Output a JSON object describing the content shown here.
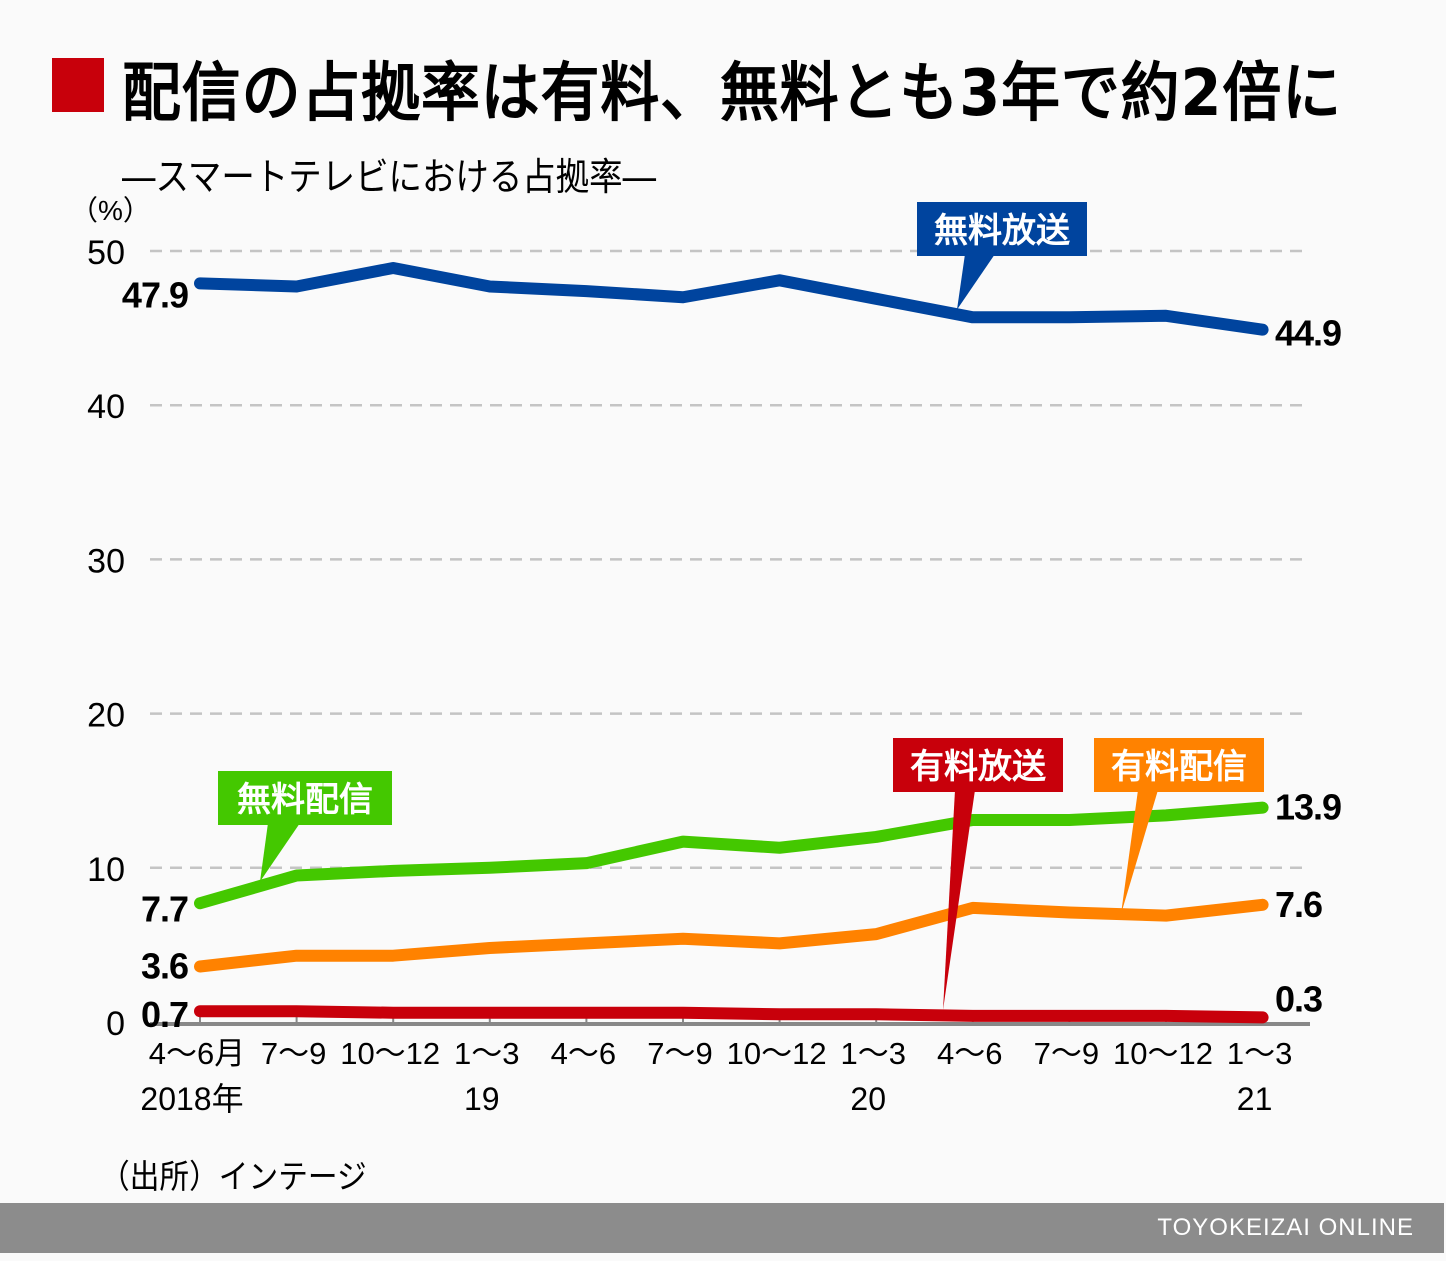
{
  "header": {
    "title": "配信の占拠率は有料、無料とも3年で約2倍に",
    "subtitle": "―スマートテレビにおける占拠率―"
  },
  "source": "（出所）インテージ",
  "footer": {
    "brand": "TOYOKEIZAI ONLINE"
  },
  "colors": {
    "title_mark": "#c8000b",
    "free_broadcast": "#00449e",
    "free_streaming": "#44c800",
    "paid_streaming": "#ff8200",
    "paid_broadcast": "#c8000b",
    "grid": "#c4c4c4",
    "footer": "#8c8c8c"
  },
  "chart_data": {
    "type": "line",
    "title": "配信の占拠率は有料、無料とも3年で約2倍に",
    "subtitle": "スマートテレビにおける占拠率",
    "xlabel": "",
    "ylabel": "（%）",
    "ylim": [
      0,
      50
    ],
    "yticks": [
      0,
      10,
      20,
      30,
      40,
      50
    ],
    "grid": true,
    "categories": [
      "4～6月",
      "7～9",
      "10～12",
      "1～3",
      "4～6",
      "7～9",
      "10～12",
      "1～3",
      "4～6",
      "7～9",
      "10～12",
      "1～3"
    ],
    "year_labels": [
      {
        "index": 0,
        "label": "2018年"
      },
      {
        "index": 3,
        "label": "19"
      },
      {
        "index": 7,
        "label": "20"
      },
      {
        "index": 11,
        "label": "21"
      }
    ],
    "series": [
      {
        "key": "free_broadcast",
        "name": "無料放送",
        "color": "#00449e",
        "values": [
          47.9,
          47.7,
          48.9,
          47.7,
          47.4,
          47.0,
          48.1,
          46.9,
          45.7,
          45.7,
          45.8,
          44.9
        ],
        "start_label": "47.9",
        "end_label": "44.9"
      },
      {
        "key": "free_streaming",
        "name": "無料配信",
        "color": "#44c800",
        "values": [
          7.7,
          9.5,
          9.8,
          10.0,
          10.3,
          11.7,
          11.3,
          12.0,
          13.1,
          13.1,
          13.4,
          13.9
        ],
        "start_label": "7.7",
        "end_label": "13.9"
      },
      {
        "key": "paid_streaming",
        "name": "有料配信",
        "color": "#ff8200",
        "values": [
          3.6,
          4.3,
          4.3,
          4.8,
          5.1,
          5.4,
          5.1,
          5.7,
          7.4,
          7.1,
          6.9,
          7.6
        ],
        "start_label": "3.6",
        "end_label": "7.6"
      },
      {
        "key": "paid_broadcast",
        "name": "有料放送",
        "color": "#c8000b",
        "values": [
          0.7,
          0.7,
          0.6,
          0.6,
          0.6,
          0.6,
          0.5,
          0.5,
          0.4,
          0.4,
          0.4,
          0.3
        ],
        "start_label": "0.7",
        "end_label": "0.3"
      }
    ],
    "legend": "callout labels on lines",
    "callouts": [
      {
        "series": "free_broadcast",
        "text": "無料放送",
        "position": "top-right"
      },
      {
        "series": "free_streaming",
        "text": "無料配信",
        "position": "left"
      },
      {
        "series": "paid_broadcast",
        "text": "有料放送",
        "position": "right"
      },
      {
        "series": "paid_streaming",
        "text": "有料配信",
        "position": "right"
      }
    ]
  }
}
